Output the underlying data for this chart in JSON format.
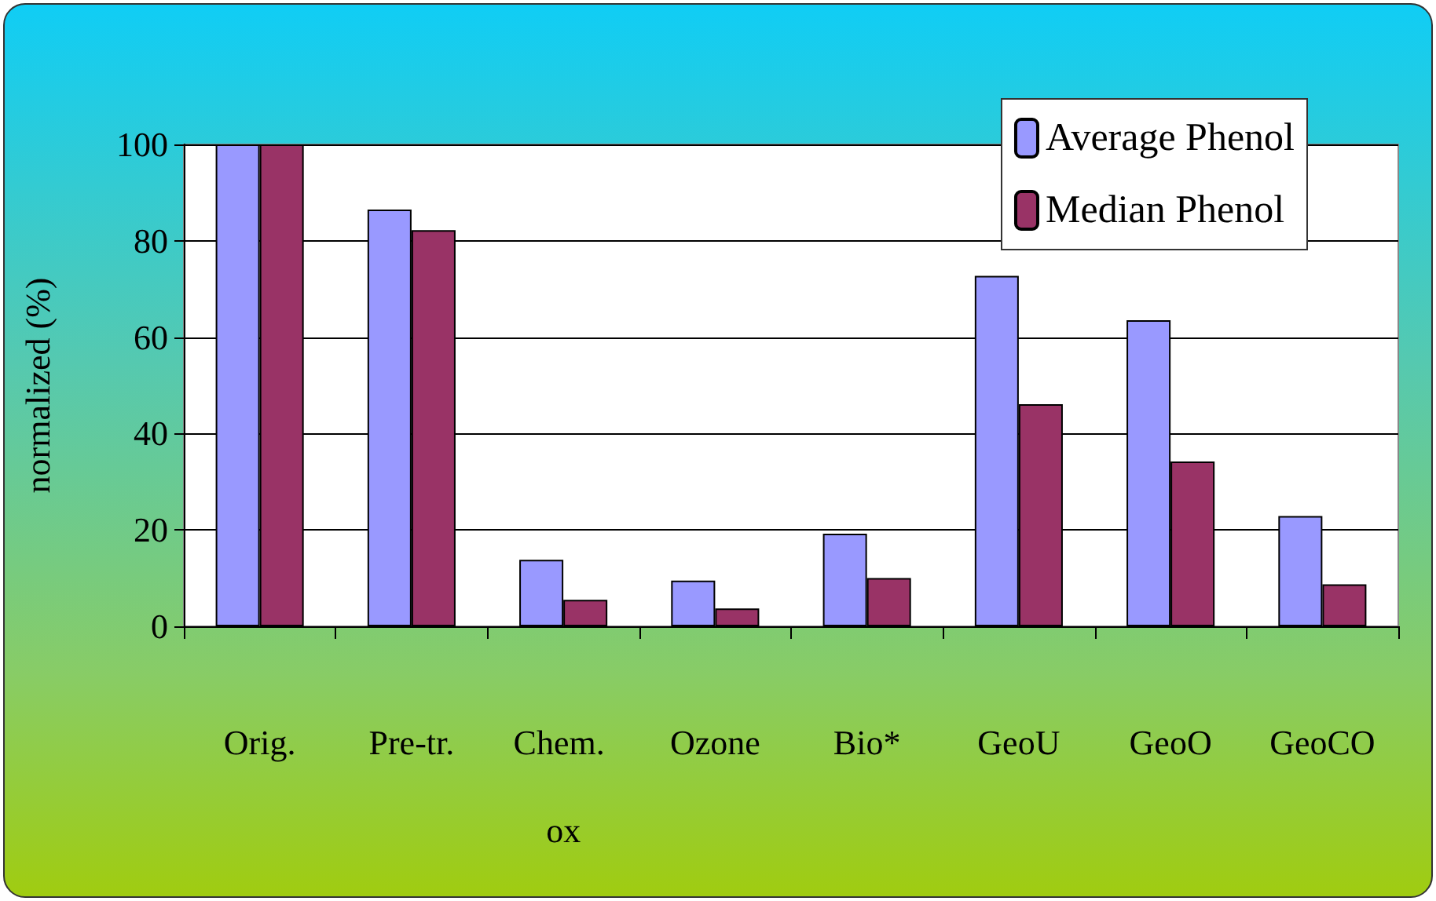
{
  "chart_data": {
    "type": "bar",
    "ylabel": "normalized (%)",
    "categories": [
      "Orig.",
      "Pre-tr.",
      "Chem. ox",
      "Ozone",
      "Bio*",
      "GeoU",
      "GeoO",
      "GeoCO"
    ],
    "series": [
      {
        "name": "Average Phenol",
        "color": "#9999ff",
        "values": [
          100,
          86.5,
          13.8,
          9.5,
          19.2,
          72.7,
          63.5,
          22.9
        ]
      },
      {
        "name": "Median Phenol",
        "color": "#993366",
        "values": [
          100,
          82.2,
          5.5,
          3.7,
          10,
          46.1,
          34.2,
          8.7
        ]
      }
    ],
    "ylim": [
      0,
      100
    ],
    "yticks": [
      0,
      20,
      40,
      60,
      80,
      100
    ],
    "grid": "y",
    "legend": "top right"
  }
}
